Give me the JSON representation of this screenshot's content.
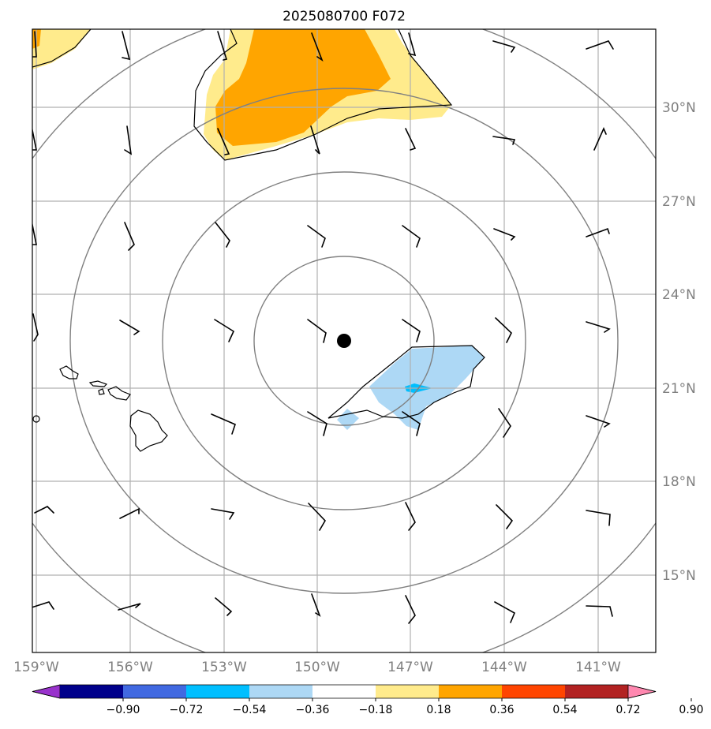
{
  "title": "2025080700 F072",
  "latitude_labels": [
    "30°N",
    "27°N",
    "24°N",
    "21°N",
    "18°N",
    "15°N"
  ],
  "longitude_labels": [
    "159°W",
    "156°W",
    "153°W",
    "150°W",
    "147°W",
    "144°W",
    "141°W"
  ],
  "colorbar": {
    "ticks": [
      "−0.90",
      "−0.72",
      "−0.54",
      "−0.36",
      "−0.18",
      "0.18",
      "0.36",
      "0.54",
      "0.72",
      "0.90"
    ],
    "colors": [
      "#9932cc",
      "#00008b",
      "#4169e1",
      "#00bfff",
      "#add8f5",
      "#ffffff",
      "#ffeb8c",
      "#ffa500",
      "#ff4500",
      "#b22222",
      "#ff88b0"
    ]
  },
  "fill_colors": {
    "light_yellow": "#ffeb8c",
    "orange": "#ffa500",
    "light_blue": "#add8f5",
    "cyan": "#00bfff"
  },
  "center_marker_color": "#000000",
  "contour_color": "#808080",
  "grid_color": "#b0b0b0"
}
